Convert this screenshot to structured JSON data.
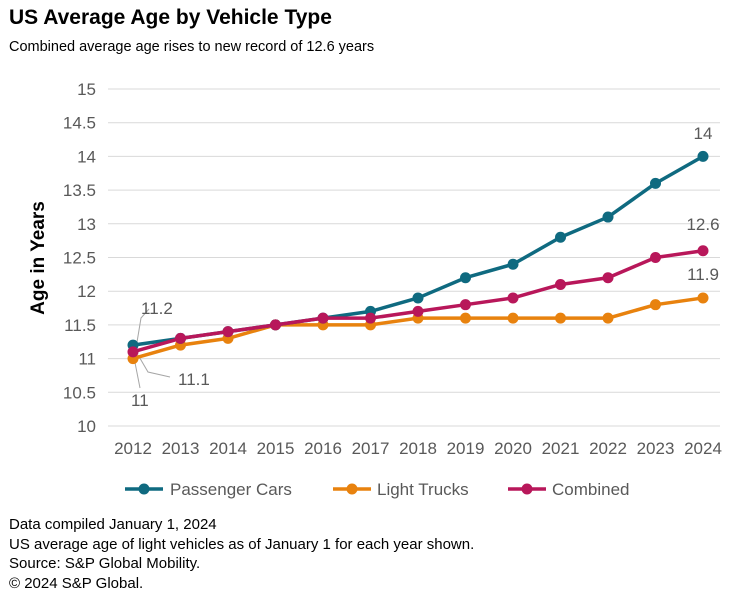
{
  "header": {
    "title": "US Average Age by Vehicle Type",
    "subtitle": "Combined average age rises to new record of 12.6 years"
  },
  "notes": [
    "Data compiled January 1, 2024",
    "US average age of light vehicles as of January 1 for each year shown.",
    "Source: S&P Global Mobility.",
    "© 2024 S&P Global."
  ],
  "colors": {
    "passenger": "#0f6a80",
    "trucks": "#e8820e",
    "combined": "#b8175a",
    "grid": "#d9d9d9",
    "text": "#595959"
  },
  "chart_data": {
    "type": "line",
    "title": "US Average Age by Vehicle Type",
    "ylabel": "Age in Years",
    "xlabel": "",
    "ylim": [
      10,
      15
    ],
    "yticks": [
      "10",
      "10.5",
      "11",
      "11.5",
      "12",
      "12.5",
      "13",
      "13.5",
      "14",
      "14.5",
      "15"
    ],
    "categories": [
      "2012",
      "2013",
      "2014",
      "2015",
      "2016",
      "2017",
      "2018",
      "2019",
      "2020",
      "2021",
      "2022",
      "2023",
      "2024"
    ],
    "grid": "horizontal",
    "legend": "bottom",
    "series": [
      {
        "name": "Passenger Cars",
        "values": [
          11.2,
          11.3,
          11.4,
          11.5,
          11.6,
          11.7,
          11.9,
          12.2,
          12.4,
          12.8,
          13.1,
          13.6,
          14.0
        ]
      },
      {
        "name": "Light Trucks",
        "values": [
          11.0,
          11.2,
          11.3,
          11.5,
          11.5,
          11.5,
          11.6,
          11.6,
          11.6,
          11.6,
          11.6,
          11.8,
          11.9
        ]
      },
      {
        "name": "Combined",
        "values": [
          11.1,
          11.3,
          11.4,
          11.5,
          11.6,
          11.6,
          11.7,
          11.8,
          11.9,
          12.1,
          12.2,
          12.5,
          12.6
        ]
      }
    ],
    "annotations": [
      "11.2",
      "11.1",
      "11",
      "14",
      "12.6",
      "11.9"
    ]
  }
}
